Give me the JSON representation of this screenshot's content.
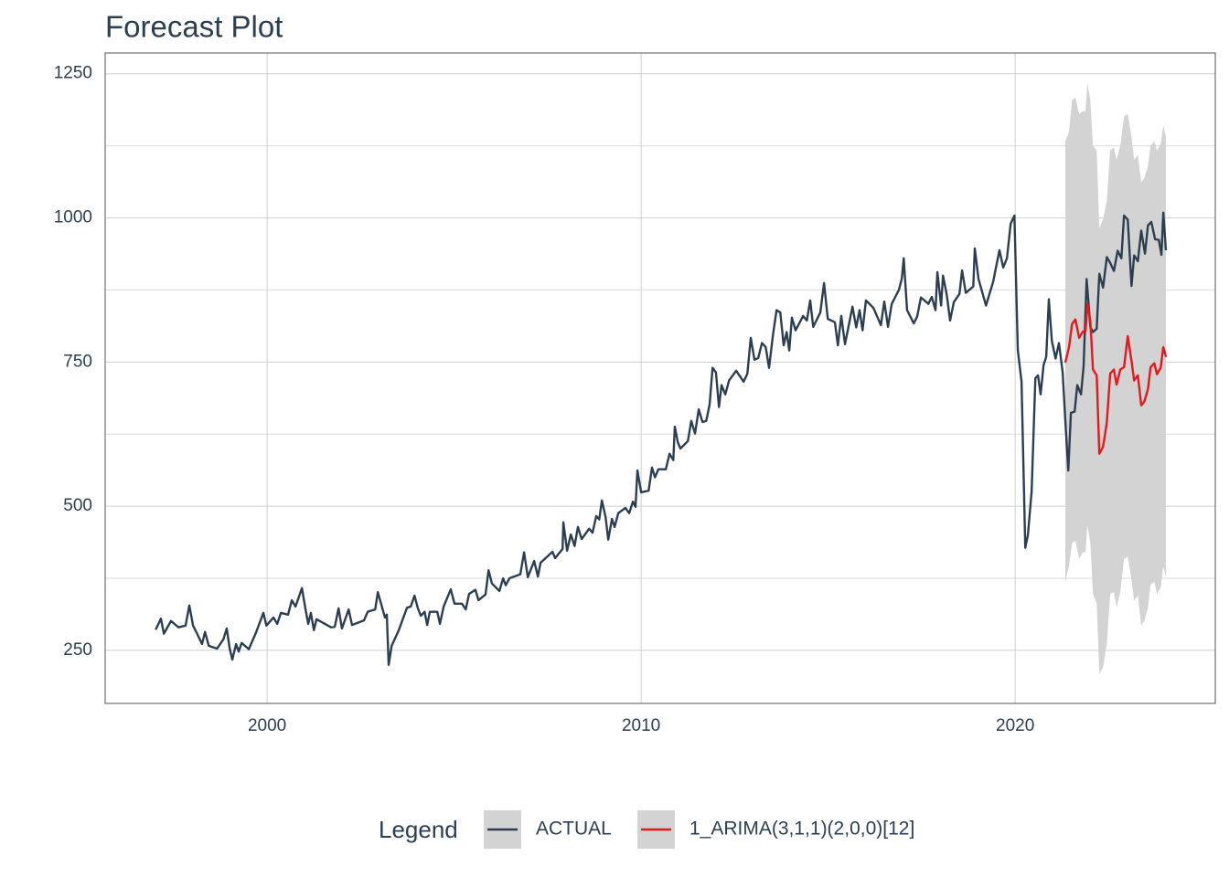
{
  "chart_data": {
    "type": "line",
    "title": "Forecast Plot",
    "xlim": [
      1995.67,
      2025.35
    ],
    "ylim": [
      158,
      1286
    ],
    "xticks": [
      2000,
      2010,
      2020
    ],
    "yticks": [
      250,
      500,
      750,
      1000,
      1250
    ],
    "yminor_ticks": [
      375,
      625,
      875,
      1125
    ],
    "grid": true,
    "legend_title": "Legend",
    "legend_position": "bottom",
    "band_color": "#d3d3d3",
    "series": [
      {
        "name": "ACTUAL",
        "color": "#2c3e50",
        "x": [
          1997.02,
          1997.16,
          1997.24,
          1997.43,
          1997.63,
          1997.82,
          1997.92,
          1998.02,
          1998.12,
          1998.26,
          1998.34,
          1998.44,
          1998.66,
          1998.83,
          1998.92,
          1999.0,
          1999.07,
          1999.17,
          1999.24,
          1999.32,
          1999.51,
          1999.71,
          1999.9,
          1999.98,
          2000.17,
          2000.27,
          2000.37,
          2000.56,
          2000.66,
          2000.76,
          2000.93,
          2001.03,
          2001.1,
          2001.17,
          2001.25,
          2001.32,
          2001.71,
          2001.81,
          2001.91,
          2002.0,
          2002.18,
          2002.27,
          2002.59,
          2002.69,
          2002.89,
          2002.96,
          2003.06,
          2003.15,
          2003.2,
          2003.25,
          2003.33,
          2003.52,
          2003.74,
          2003.84,
          2003.94,
          2004.03,
          2004.11,
          2004.21,
          2004.28,
          2004.35,
          2004.55,
          2004.62,
          2004.72,
          2004.91,
          2005.01,
          2005.21,
          2005.31,
          2005.4,
          2005.57,
          2005.65,
          2005.84,
          2005.92,
          2006.01,
          2006.21,
          2006.31,
          2006.38,
          2006.48,
          2006.77,
          2006.87,
          2006.97,
          2007.14,
          2007.24,
          2007.31,
          2007.63,
          2007.7,
          2007.9,
          2007.92,
          2008.02,
          2008.12,
          2008.22,
          2008.31,
          2008.41,
          2008.61,
          2008.7,
          2008.8,
          2008.88,
          2008.95,
          2009.05,
          2009.12,
          2009.22,
          2009.29,
          2009.39,
          2009.58,
          2009.68,
          2009.78,
          2009.85,
          2009.9,
          2010.0,
          2010.2,
          2010.29,
          2010.37,
          2010.46,
          2010.66,
          2010.76,
          2010.86,
          2010.9,
          2010.98,
          2011.05,
          2011.25,
          2011.34,
          2011.44,
          2011.54,
          2011.64,
          2011.74,
          2011.83,
          2011.91,
          2012.0,
          2012.08,
          2012.15,
          2012.25,
          2012.35,
          2012.54,
          2012.74,
          2012.84,
          2012.93,
          2013.03,
          2013.13,
          2013.23,
          2013.33,
          2013.42,
          2013.52,
          2013.62,
          2013.72,
          2013.81,
          2013.89,
          2013.96,
          2014.03,
          2014.13,
          2014.33,
          2014.43,
          2014.52,
          2014.6,
          2014.79,
          2014.89,
          2014.99,
          2015.18,
          2015.26,
          2015.35,
          2015.45,
          2015.65,
          2015.75,
          2015.84,
          2015.92,
          2016.01,
          2016.21,
          2016.41,
          2016.5,
          2016.6,
          2016.7,
          2016.89,
          2016.97,
          2017.02,
          2017.11,
          2017.29,
          2017.38,
          2017.48,
          2017.68,
          2017.77,
          2017.87,
          2017.92,
          2018.02,
          2018.07,
          2018.17,
          2018.26,
          2018.36,
          2018.51,
          2018.58,
          2018.68,
          2018.88,
          2018.92,
          2019.02,
          2019.22,
          2019.41,
          2019.58,
          2019.68,
          2019.78,
          2019.88,
          2019.98,
          2020.07,
          2020.17,
          2020.27,
          2020.34,
          2020.44,
          2020.54,
          2020.61,
          2020.68,
          2020.76,
          2020.83,
          2020.9,
          2020.98,
          2021.08,
          2021.17,
          2021.27,
          2021.34,
          2021.42,
          2021.49,
          2021.59,
          2021.66,
          2021.76,
          2021.83,
          2021.91,
          2022.01,
          2022.08,
          2022.18,
          2022.25,
          2022.35,
          2022.45,
          2022.54,
          2022.64,
          2022.74,
          2022.84,
          2022.91,
          2023.01,
          2023.11,
          2023.18,
          2023.28,
          2023.37,
          2023.47,
          2023.55,
          2023.64,
          2023.74,
          2023.84,
          2023.91,
          2023.96,
          2024.03
        ],
        "values": [
          286,
          305,
          279,
          301,
          290,
          293,
          328,
          293,
          280,
          261,
          282,
          258,
          253,
          269,
          288,
          253,
          234,
          261,
          248,
          263,
          252,
          282,
          315,
          293,
          307,
          296,
          315,
          312,
          337,
          326,
          358,
          320,
          296,
          315,
          285,
          304,
          290,
          291,
          323,
          288,
          321,
          294,
          302,
          317,
          321,
          351,
          328,
          307,
          312,
          225,
          258,
          285,
          324,
          326,
          345,
          323,
          310,
          317,
          294,
          317,
          317,
          296,
          326,
          356,
          331,
          331,
          321,
          348,
          355,
          337,
          347,
          389,
          366,
          353,
          375,
          363,
          375,
          382,
          420,
          377,
          405,
          378,
          402,
          421,
          410,
          426,
          472,
          423,
          451,
          431,
          464,
          443,
          461,
          454,
          483,
          477,
          510,
          481,
          442,
          478,
          464,
          488,
          497,
          488,
          508,
          499,
          562,
          524,
          527,
          567,
          550,
          564,
          564,
          591,
          580,
          638,
          611,
          600,
          613,
          648,
          626,
          668,
          646,
          648,
          676,
          740,
          732,
          672,
          710,
          694,
          718,
          735,
          716,
          730,
          792,
          754,
          757,
          783,
          776,
          740,
          795,
          840,
          836,
          779,
          802,
          770,
          827,
          805,
          830,
          822,
          857,
          811,
          836,
          887,
          825,
          819,
          779,
          830,
          781,
          846,
          810,
          840,
          805,
          857,
          844,
          814,
          855,
          811,
          851,
          875,
          895,
          930,
          840,
          817,
          829,
          862,
          851,
          863,
          840,
          906,
          848,
          900,
          867,
          822,
          854,
          868,
          909,
          870,
          881,
          947,
          894,
          848,
          889,
          944,
          914,
          930,
          990,
          1004,
          771,
          716,
          428,
          450,
          526,
          722,
          727,
          694,
          745,
          759,
          859,
          787,
          756,
          783,
          732,
          649,
          562,
          662,
          664,
          710,
          694,
          743,
          894,
          811,
          802,
          808,
          903,
          879,
          932,
          922,
          908,
          943,
          930,
          1004,
          997,
          882,
          935,
          925,
          978,
          938,
          987,
          993,
          963,
          962,
          936,
          1009,
          944
        ]
      },
      {
        "name": "1_ARIMA(3,1,1)(2,0,0)[12]",
        "color": "#e31a1c",
        "x": [
          2021.34,
          2021.44,
          2021.52,
          2021.61,
          2021.71,
          2021.81,
          2021.88,
          2021.93,
          2022.01,
          2022.08,
          2022.18,
          2022.25,
          2022.35,
          2022.45,
          2022.54,
          2022.64,
          2022.71,
          2022.81,
          2022.91,
          2023.01,
          2023.11,
          2023.18,
          2023.28,
          2023.37,
          2023.45,
          2023.55,
          2023.62,
          2023.72,
          2023.79,
          2023.89,
          2023.96,
          2024.03
        ],
        "values": [
          749,
          776,
          816,
          824,
          792,
          803,
          803,
          851,
          821,
          737,
          727,
          591,
          603,
          645,
          730,
          737,
          711,
          737,
          741,
          795,
          752,
          718,
          727,
          675,
          681,
          703,
          741,
          748,
          729,
          740,
          776,
          759
        ],
        "upper": [
          1133,
          1149,
          1204,
          1209,
          1180,
          1185,
          1185,
          1233,
          1204,
          1125,
          1117,
          982,
          998,
          1030,
          1117,
          1122,
          1101,
          1125,
          1176,
          1180,
          1141,
          1101,
          1109,
          1062,
          1069,
          1090,
          1125,
          1133,
          1117,
          1128,
          1160,
          1141
        ],
        "lower": [
          369,
          396,
          436,
          440,
          409,
          420,
          420,
          467,
          436,
          348,
          332,
          209,
          221,
          261,
          348,
          351,
          324,
          351,
          409,
          412,
          372,
          336,
          345,
          293,
          301,
          324,
          364,
          369,
          348,
          359,
          396,
          377
        ]
      }
    ]
  }
}
